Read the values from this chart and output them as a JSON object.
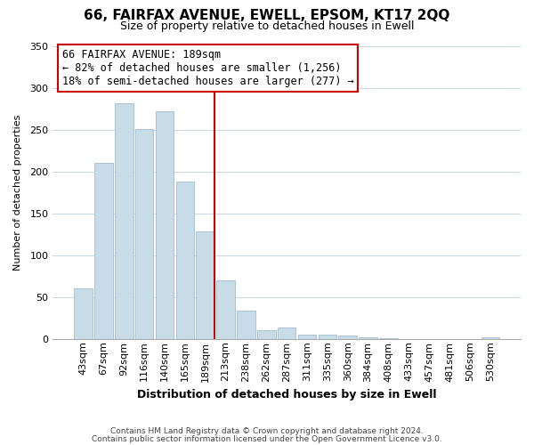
{
  "title": "66, FAIRFAX AVENUE, EWELL, EPSOM, KT17 2QQ",
  "subtitle": "Size of property relative to detached houses in Ewell",
  "xlabel": "Distribution of detached houses by size in Ewell",
  "ylabel": "Number of detached properties",
  "bar_labels": [
    "43sqm",
    "67sqm",
    "92sqm",
    "116sqm",
    "140sqm",
    "165sqm",
    "189sqm",
    "213sqm",
    "238sqm",
    "262sqm",
    "287sqm",
    "311sqm",
    "335sqm",
    "360sqm",
    "384sqm",
    "408sqm",
    "433sqm",
    "457sqm",
    "481sqm",
    "506sqm",
    "530sqm"
  ],
  "bar_values": [
    60,
    210,
    281,
    251,
    272,
    188,
    128,
    70,
    34,
    10,
    14,
    5,
    5,
    4,
    2,
    1,
    0,
    0,
    0,
    0,
    2
  ],
  "bar_color": "#c8dce8",
  "bar_edge_color": "#a0bcd0",
  "marker_line_index": 6,
  "marker_line_color": "#cc0000",
  "annotation_title": "66 FAIRFAX AVENUE: 189sqm",
  "annotation_line1": "← 82% of detached houses are smaller (1,256)",
  "annotation_line2": "18% of semi-detached houses are larger (277) →",
  "ylim": [
    0,
    350
  ],
  "yticks": [
    0,
    50,
    100,
    150,
    200,
    250,
    300,
    350
  ],
  "footer_line1": "Contains HM Land Registry data © Crown copyright and database right 2024.",
  "footer_line2": "Contains public sector information licensed under the Open Government Licence v3.0.",
  "background_color": "#ffffff",
  "grid_color": "#c8d8e8",
  "title_fontsize": 11,
  "subtitle_fontsize": 9,
  "xlabel_fontsize": 9,
  "ylabel_fontsize": 8,
  "tick_fontsize": 8,
  "ann_fontsize": 8.5,
  "footer_fontsize": 6.5
}
